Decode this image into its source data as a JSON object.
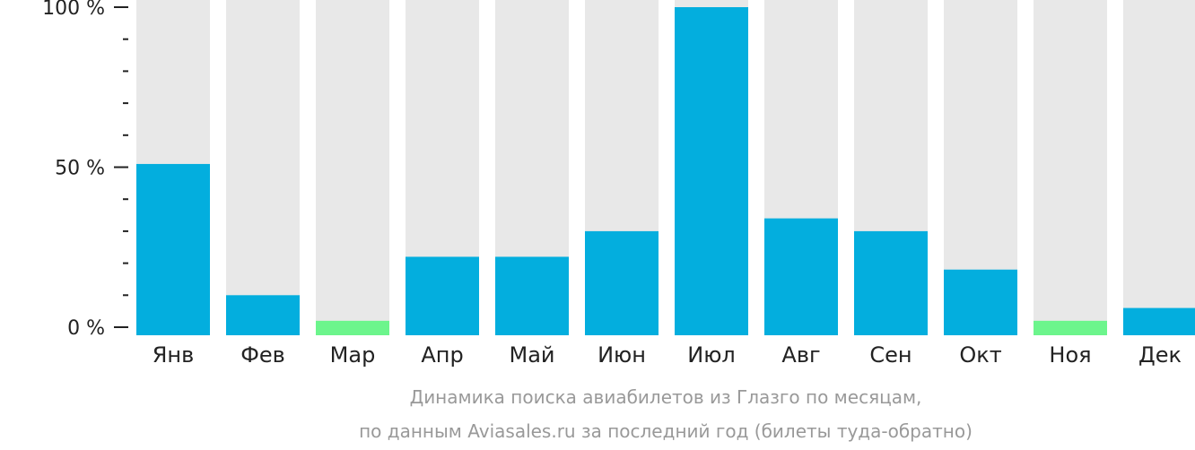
{
  "chart_data": {
    "type": "bar",
    "categories": [
      "Янв",
      "Фев",
      "Мар",
      "Апр",
      "Май",
      "Июн",
      "Июл",
      "Авг",
      "Сен",
      "Окт",
      "Ноя",
      "Дек"
    ],
    "values": [
      51,
      10,
      2,
      22,
      22,
      30,
      100,
      34,
      30,
      18,
      2,
      6
    ],
    "highlight": [
      false,
      false,
      true,
      false,
      false,
      false,
      false,
      false,
      false,
      false,
      true,
      false
    ],
    "ylim": [
      0,
      100
    ],
    "yticks": [
      {
        "value": 100,
        "label": "100 %"
      },
      {
        "value": 50,
        "label": "50 %"
      },
      {
        "value": 0,
        "label": "0 %"
      }
    ],
    "minor_tick_step": 10,
    "colors": {
      "bar": "#03aede",
      "highlight": "#6cf58c",
      "background_bar": "#e8e8e8",
      "axis": "#222222"
    }
  },
  "caption": {
    "line1": "Динамика поиска авиабилетов из Глазго по месяцам,",
    "line2": "по данным Aviasales.ru за последний год (билеты туда-обратно)"
  }
}
